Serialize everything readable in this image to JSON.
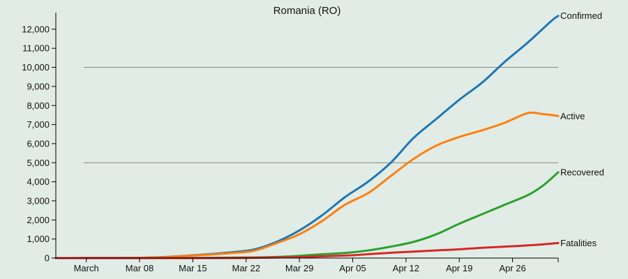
{
  "chart_data": {
    "type": "line",
    "title": "Romania (RO)",
    "xlabel": "",
    "ylabel": "",
    "x_start": "2020-02-26",
    "x_end": "2020-05-02",
    "xlim": [
      "2020-02-26",
      "2020-05-02"
    ],
    "ylim": [
      0,
      12800
    ],
    "grid_lines_y": [
      5000,
      10000
    ],
    "x_ticks": [
      {
        "date": "2020-03-01",
        "label": "March"
      },
      {
        "date": "2020-03-08",
        "label": "Mar 08"
      },
      {
        "date": "2020-03-15",
        "label": "Mar 15"
      },
      {
        "date": "2020-03-22",
        "label": "Mar 22"
      },
      {
        "date": "2020-03-29",
        "label": "Mar 29"
      },
      {
        "date": "2020-04-05",
        "label": "Apr 05"
      },
      {
        "date": "2020-04-12",
        "label": "Apr 12"
      },
      {
        "date": "2020-04-19",
        "label": "Apr 19"
      },
      {
        "date": "2020-04-26",
        "label": "Apr 26"
      }
    ],
    "y_ticks": [
      {
        "value": 0,
        "label": "0"
      },
      {
        "value": 1000,
        "label": "1,000"
      },
      {
        "value": 2000,
        "label": "2,000"
      },
      {
        "value": 3000,
        "label": "3,000"
      },
      {
        "value": 4000,
        "label": "4,000"
      },
      {
        "value": 5000,
        "label": "5,000"
      },
      {
        "value": 6000,
        "label": "6,000"
      },
      {
        "value": 7000,
        "label": "7,000"
      },
      {
        "value": 8000,
        "label": "8,000"
      },
      {
        "value": 9000,
        "label": "9,000"
      },
      {
        "value": 10000,
        "label": "10,000"
      },
      {
        "value": 11000,
        "label": "11,000"
      },
      {
        "value": 12000,
        "label": "12,000"
      }
    ],
    "series": [
      {
        "name": "Confirmed",
        "color": "#1f77b4",
        "points": [
          [
            "2020-02-26",
            1
          ],
          [
            "2020-03-01",
            3
          ],
          [
            "2020-03-05",
            6
          ],
          [
            "2020-03-08",
            15
          ],
          [
            "2020-03-11",
            50
          ],
          [
            "2020-03-14",
            120
          ],
          [
            "2020-03-17",
            200
          ],
          [
            "2020-03-20",
            300
          ],
          [
            "2020-03-23",
            450
          ],
          [
            "2020-03-26",
            850
          ],
          [
            "2020-03-29",
            1450
          ],
          [
            "2020-04-01",
            2250
          ],
          [
            "2020-04-04",
            3200
          ],
          [
            "2020-04-07",
            4000
          ],
          [
            "2020-04-10",
            5000
          ],
          [
            "2020-04-13",
            6300
          ],
          [
            "2020-04-16",
            7300
          ],
          [
            "2020-04-19",
            8300
          ],
          [
            "2020-04-22",
            9200
          ],
          [
            "2020-04-25",
            10300
          ],
          [
            "2020-04-28",
            11300
          ],
          [
            "2020-05-01",
            12400
          ],
          [
            "2020-05-02",
            12700
          ]
        ]
      },
      {
        "name": "Active",
        "color": "#ff7f0e",
        "points": [
          [
            "2020-02-26",
            1
          ],
          [
            "2020-03-01",
            3
          ],
          [
            "2020-03-05",
            6
          ],
          [
            "2020-03-08",
            15
          ],
          [
            "2020-03-11",
            45
          ],
          [
            "2020-03-14",
            110
          ],
          [
            "2020-03-17",
            180
          ],
          [
            "2020-03-20",
            260
          ],
          [
            "2020-03-23",
            380
          ],
          [
            "2020-03-26",
            780
          ],
          [
            "2020-03-29",
            1250
          ],
          [
            "2020-04-01",
            1950
          ],
          [
            "2020-04-04",
            2800
          ],
          [
            "2020-04-07",
            3400
          ],
          [
            "2020-04-10",
            4300
          ],
          [
            "2020-04-13",
            5200
          ],
          [
            "2020-04-16",
            5900
          ],
          [
            "2020-04-19",
            6350
          ],
          [
            "2020-04-22",
            6700
          ],
          [
            "2020-04-25",
            7100
          ],
          [
            "2020-04-28",
            7600
          ],
          [
            "2020-04-30",
            7550
          ],
          [
            "2020-05-02",
            7450
          ]
        ]
      },
      {
        "name": "Recovered",
        "color": "#2ca02c",
        "points": [
          [
            "2020-02-26",
            0
          ],
          [
            "2020-03-08",
            0
          ],
          [
            "2020-03-15",
            10
          ],
          [
            "2020-03-22",
            30
          ],
          [
            "2020-03-26",
            60
          ],
          [
            "2020-03-29",
            120
          ],
          [
            "2020-04-01",
            200
          ],
          [
            "2020-04-04",
            270
          ],
          [
            "2020-04-07",
            400
          ],
          [
            "2020-04-10",
            600
          ],
          [
            "2020-04-13",
            850
          ],
          [
            "2020-04-16",
            1250
          ],
          [
            "2020-04-19",
            1800
          ],
          [
            "2020-04-22",
            2300
          ],
          [
            "2020-04-25",
            2800
          ],
          [
            "2020-04-28",
            3300
          ],
          [
            "2020-04-30",
            3800
          ],
          [
            "2020-05-02",
            4500
          ]
        ]
      },
      {
        "name": "Fatalities",
        "color": "#d62728",
        "points": [
          [
            "2020-02-26",
            0
          ],
          [
            "2020-03-15",
            0
          ],
          [
            "2020-03-22",
            10
          ],
          [
            "2020-03-29",
            50
          ],
          [
            "2020-04-01",
            90
          ],
          [
            "2020-04-05",
            150
          ],
          [
            "2020-04-08",
            230
          ],
          [
            "2020-04-12",
            320
          ],
          [
            "2020-04-16",
            400
          ],
          [
            "2020-04-19",
            460
          ],
          [
            "2020-04-22",
            540
          ],
          [
            "2020-04-26",
            620
          ],
          [
            "2020-04-29",
            690
          ],
          [
            "2020-05-02",
            790
          ]
        ]
      }
    ]
  }
}
